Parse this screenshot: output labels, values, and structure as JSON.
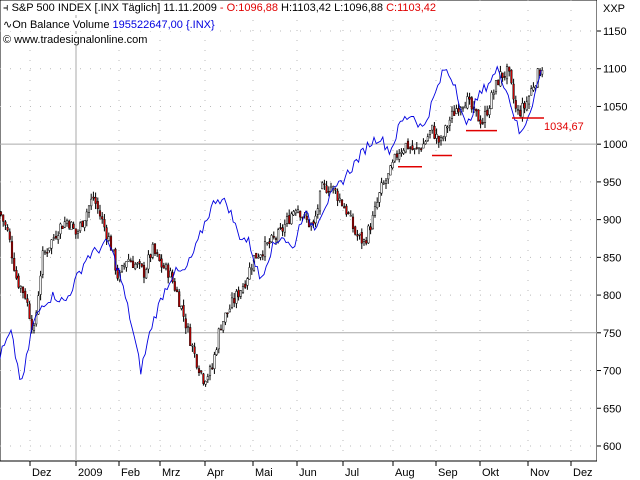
{
  "header": {
    "title": "S&P 500 INDEX [.INX  Täglich]",
    "date": "11.11.2009",
    "sep": " - ",
    "open": "O:1096,88",
    "high": "H:1103,42",
    "low": "L:1096,88",
    "close": "C:1103,42",
    "indicator_name": "On Balance Volume",
    "indicator_value": "195522647,00",
    "indicator_symbol": "{.INX}",
    "copyright": "© www.tradesignalonline.com"
  },
  "chart_data": {
    "type": "candlestick",
    "title": "S&P 500 INDEX [.INX Täglich]",
    "yaxis_label": "XXP",
    "ylim": [
      585,
      1165
    ],
    "yticks": [
      1150,
      1100,
      1050,
      1000,
      950,
      900,
      850,
      800,
      750,
      700,
      650,
      600
    ],
    "xticks": [
      "Dez",
      "2009",
      "Feb",
      "Mrz",
      "Apr",
      "Mai",
      "Jun",
      "Jul",
      "Aug",
      "Sep",
      "Okt",
      "Nov",
      "Dez"
    ],
    "price_close_path": [
      910,
      880,
      820,
      800,
      750,
      850,
      870,
      890,
      900,
      880,
      905,
      930,
      900,
      870,
      820,
      850,
      840,
      830,
      860,
      840,
      830,
      800,
      760,
      720,
      690,
      700,
      760,
      780,
      800,
      820,
      850,
      860,
      870,
      880,
      900,
      920,
      900,
      890,
      940,
      945,
      930,
      910,
      880,
      870,
      900,
      940,
      960,
      990,
      1000,
      990,
      1000,
      1020,
      1000,
      1030,
      1050,
      1060,
      1040,
      1030,
      1060,
      1090,
      1095,
      1040,
      1050,
      1080,
      1103
    ],
    "obv_path": [
      720,
      750,
      680,
      760,
      790,
      800,
      790,
      820,
      850,
      860,
      870,
      830,
      770,
      700,
      760,
      800,
      830,
      830,
      860,
      900,
      930,
      920,
      880,
      870,
      820,
      860,
      880,
      860,
      910,
      890,
      920,
      940,
      960,
      980,
      1000,
      1010,
      990,
      1030,
      1040,
      1020,
      1060,
      1100,
      1080,
      1020,
      1060,
      1080,
      1100,
      1060,
      1010,
      1050,
      1100
    ],
    "support_levels": [
      970,
      985,
      1018,
      1034.67
    ],
    "annotation": "1034,67"
  }
}
